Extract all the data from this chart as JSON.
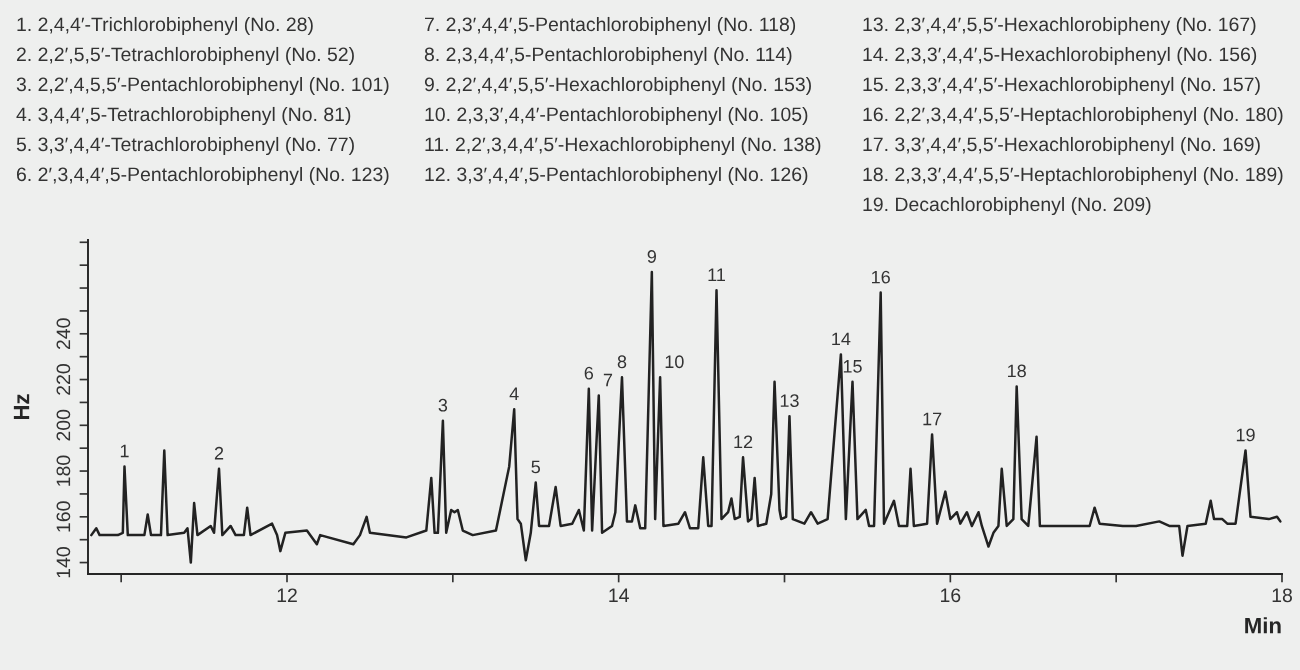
{
  "chart_data": {
    "type": "line",
    "xlabel": "Min",
    "ylabel": "Hz",
    "xlim": [
      10.8,
      18
    ],
    "ylim": [
      135,
      281
    ],
    "xticks": [
      {
        "value": 11,
        "label": null
      },
      12,
      {
        "value": 13,
        "label": null
      },
      14,
      {
        "value": 15,
        "label": null
      },
      16,
      {
        "value": 17,
        "label": null
      },
      18
    ],
    "yticks": [
      140,
      {
        "value": 150,
        "label": null
      },
      160,
      {
        "value": 170,
        "label": null
      },
      180,
      {
        "value": 190,
        "label": null
      },
      200,
      {
        "value": 210,
        "label": null
      },
      220,
      {
        "value": 230,
        "label": null
      },
      240,
      {
        "value": 250,
        "label": null
      },
      {
        "value": 260,
        "label": null
      },
      {
        "value": 270,
        "label": null
      },
      {
        "value": 280,
        "label": null
      }
    ],
    "grid": false,
    "legend": false,
    "marker": "none",
    "line_style": "solid",
    "x": [
      10.82,
      10.85,
      10.87,
      10.98,
      11.01,
      11.02,
      11.04,
      11.14,
      11.16,
      11.18,
      11.24,
      11.26,
      11.28,
      11.38,
      11.4,
      11.42,
      11.44,
      11.46,
      11.54,
      11.56,
      11.59,
      11.61,
      11.66,
      11.69,
      11.74,
      11.76,
      11.78,
      11.91,
      11.94,
      11.96,
      11.99,
      12.12,
      12.18,
      12.2,
      12.4,
      12.44,
      12.48,
      12.5,
      12.72,
      12.84,
      12.87,
      12.89,
      12.91,
      12.94,
      12.96,
      12.99,
      13.01,
      13.03,
      13.06,
      13.12,
      13.26,
      13.34,
      13.37,
      13.39,
      13.41,
      13.44,
      13.47,
      13.5,
      13.52,
      13.58,
      13.62,
      13.65,
      13.72,
      13.76,
      13.79,
      13.82,
      13.84,
      13.88,
      13.9,
      13.96,
      13.98,
      14.02,
      14.05,
      14.08,
      14.1,
      14.13,
      14.16,
      14.2,
      14.22,
      14.25,
      14.27,
      14.36,
      14.4,
      14.43,
      14.48,
      14.51,
      14.54,
      14.56,
      14.59,
      14.62,
      14.66,
      14.68,
      14.7,
      14.73,
      14.75,
      14.78,
      14.8,
      14.82,
      14.84,
      14.89,
      14.92,
      14.94,
      14.97,
      14.98,
      15.01,
      15.03,
      15.05,
      15.12,
      15.16,
      15.2,
      15.26,
      15.34,
      15.37,
      15.41,
      15.44,
      15.49,
      15.51,
      15.54,
      15.58,
      15.6,
      15.66,
      15.69,
      15.74,
      15.76,
      15.78,
      15.86,
      15.89,
      15.92,
      15.97,
      16.0,
      16.04,
      16.06,
      16.1,
      16.13,
      16.17,
      16.19,
      16.23,
      16.26,
      16.29,
      16.31,
      16.34,
      16.38,
      16.4,
      16.43,
      16.47,
      16.52,
      16.54,
      16.84,
      16.87,
      16.9,
      17.04,
      17.12,
      17.26,
      17.32,
      17.38,
      17.4,
      17.43,
      17.54,
      17.57,
      17.59,
      17.64,
      17.67,
      17.72,
      17.78,
      17.81,
      17.92,
      17.97,
      17.99
    ],
    "series": [
      {
        "color": "#222222",
        "values": [
          152,
          155,
          152,
          152,
          153,
          182,
          152,
          152,
          161,
          152,
          152,
          189,
          152,
          153,
          155,
          140,
          166,
          152,
          156,
          153,
          181,
          152,
          156,
          152,
          152,
          164,
          152,
          157,
          152,
          145,
          153,
          154,
          148,
          152,
          148,
          152,
          160,
          153,
          151,
          154,
          177,
          153,
          153,
          202,
          153,
          163,
          162,
          163,
          154,
          152,
          154,
          182,
          207,
          159,
          157,
          141,
          153,
          175,
          156,
          156,
          173,
          156,
          157,
          163,
          154,
          216,
          154,
          213,
          153,
          156,
          162,
          221,
          158,
          158,
          165,
          155,
          155,
          267,
          159,
          221,
          156,
          157,
          162,
          155,
          155,
          186,
          156,
          156,
          259,
          159,
          162,
          168,
          159,
          160,
          186,
          158,
          159,
          177,
          156,
          157,
          170,
          219,
          163,
          159,
          160,
          204,
          159,
          157,
          162,
          157,
          159,
          231,
          159,
          219,
          159,
          163,
          156,
          156,
          258,
          157,
          167,
          156,
          156,
          181,
          156,
          157,
          196,
          157,
          171,
          159,
          162,
          157,
          162,
          156,
          162,
          156,
          147,
          153,
          156,
          181,
          156,
          159,
          217,
          159,
          156,
          195,
          156,
          156,
          164,
          157,
          156,
          156,
          158,
          156,
          156,
          143,
          156,
          157,
          167,
          159,
          159,
          157,
          157,
          189,
          160,
          159,
          160,
          158
        ]
      }
    ],
    "annotations": [
      "1. 2,4,4′-Trichlorobiphenyl (No. 28)",
      "2. 2,2′,5,5′-Tetrachlorobiphenyl (No. 52)",
      "3. 2,2′,4,5,5′-Pentachlorobiphenyl (No. 101)",
      "4. 3,4,4′,5-Tetrachlorobiphenyl (No. 81)",
      "5. 3,3′,4,4′-Tetrachlorobiphenyl (No. 77)",
      "6. 2′,3,4,4′,5-Pentachlorobiphenyl (No. 123)",
      "7. 2,3′,4,4′,5-Pentachlorobiphenyl (No. 118)",
      "8. 2,3,4,4′,5-Pentachlorobiphenyl (No. 114)",
      "9. 2,2′,4,4′,5,5′-Hexachlorobiphenyl (No. 153)",
      "10. 2,3,3′,4,4′-Pentachlorobiphenyl (No. 105)",
      "11. 2,2′,3,4,4′,5′-Hexachlorobiphenyl (No. 138)",
      "12. 3,3′,4,4′,5-Pentachlorobiphenyl (No. 126)",
      "13. 2,3′,4,4′,5,5′-Hexachlorobipheny (No. 167)",
      "14. 2,3,3′,4,4′,5-Hexachlorobiphenyl (No. 156)",
      "15. 2,3,3′,4,4′,5′-Hexachlorobiphenyl (No. 157)",
      "16. 2,2′,3,4,4′,5,5′-Heptachlorobiphenyl (No. 180)",
      "17. 3,3′,4,4′,5,5′-Hexachlorobiphenyl (No. 169)",
      "18. 2,3,3′,4,4′,5,5′-Heptachlorobiphenyl (No. 189)",
      "19. Decachlorobiphenyl (No. 209)",
      {
        "text": "1",
        "x": 11.02,
        "y": 182
      },
      {
        "text": "2",
        "x": 11.59,
        "y": 181
      },
      {
        "text": "3",
        "x": 12.94,
        "y": 202
      },
      {
        "text": "4",
        "x": 13.37,
        "y": 207
      },
      {
        "text": "5",
        "x": 13.5,
        "y": 175
      },
      {
        "text": "6",
        "x": 13.82,
        "y": 216
      },
      {
        "text": "7",
        "x": 13.88,
        "y": 213
      },
      {
        "text": "8",
        "x": 14.02,
        "y": 221
      },
      {
        "text": "9",
        "x": 14.2,
        "y": 267
      },
      {
        "text": "10",
        "x": 14.25,
        "y": 221
      },
      {
        "text": "11",
        "x": 14.59,
        "y": 259
      },
      {
        "text": "12",
        "x": 14.75,
        "y": 186
      },
      {
        "text": "13",
        "x": 15.03,
        "y": 204
      },
      {
        "text": "14",
        "x": 15.34,
        "y": 231
      },
      {
        "text": "15",
        "x": 15.41,
        "y": 219
      },
      {
        "text": "16",
        "x": 15.58,
        "y": 258
      },
      {
        "text": "17",
        "x": 15.89,
        "y": 196
      },
      {
        "text": "18",
        "x": 16.4,
        "y": 217
      },
      {
        "text": "19",
        "x": 17.78,
        "y": 189
      }
    ]
  }
}
